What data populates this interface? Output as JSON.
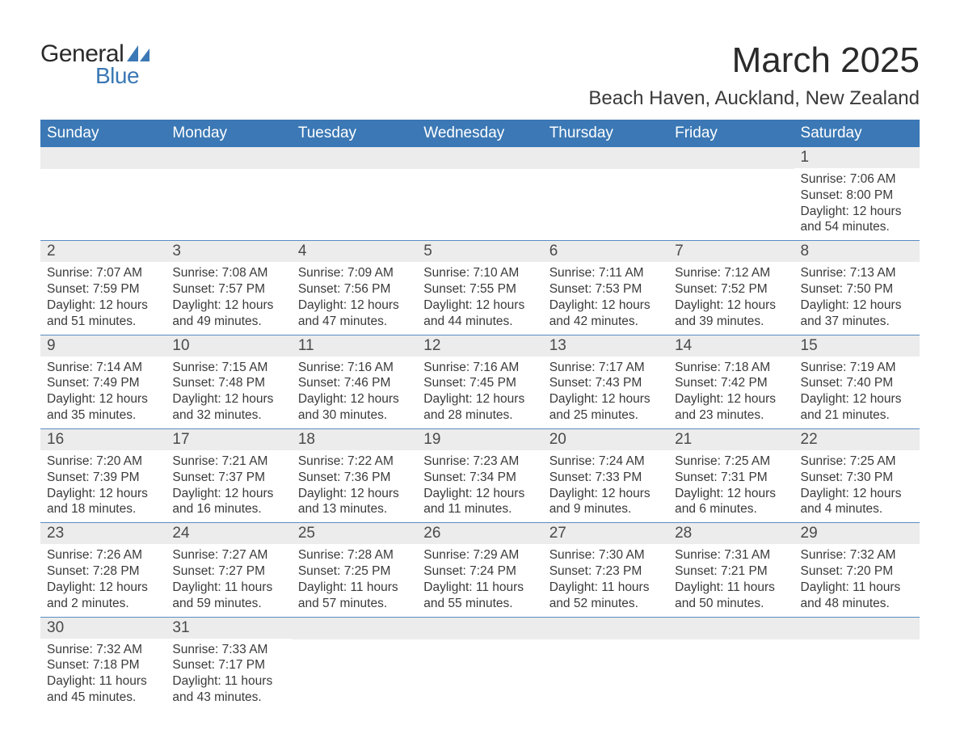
{
  "logo": {
    "text1": "General",
    "text2": "Blue",
    "accent_color": "#3b78b5"
  },
  "title": {
    "month": "March 2025",
    "location": "Beach Haven, Auckland, New Zealand"
  },
  "colors": {
    "header_bg": "#3b78b5",
    "header_text": "#ffffff",
    "daynum_bg": "#ececec",
    "row_divider": "#5a8cc4",
    "body_text": "#3a3a3a"
  },
  "weekdays": [
    "Sunday",
    "Monday",
    "Tuesday",
    "Wednesday",
    "Thursday",
    "Friday",
    "Saturday"
  ],
  "grid": {
    "rows": 6,
    "cols": 7,
    "first_day_index": 6,
    "days_in_month": 31
  },
  "days": {
    "1": {
      "sunrise": "7:06 AM",
      "sunset": "8:00 PM",
      "daylight": "12 hours and 54 minutes."
    },
    "2": {
      "sunrise": "7:07 AM",
      "sunset": "7:59 PM",
      "daylight": "12 hours and 51 minutes."
    },
    "3": {
      "sunrise": "7:08 AM",
      "sunset": "7:57 PM",
      "daylight": "12 hours and 49 minutes."
    },
    "4": {
      "sunrise": "7:09 AM",
      "sunset": "7:56 PM",
      "daylight": "12 hours and 47 minutes."
    },
    "5": {
      "sunrise": "7:10 AM",
      "sunset": "7:55 PM",
      "daylight": "12 hours and 44 minutes."
    },
    "6": {
      "sunrise": "7:11 AM",
      "sunset": "7:53 PM",
      "daylight": "12 hours and 42 minutes."
    },
    "7": {
      "sunrise": "7:12 AM",
      "sunset": "7:52 PM",
      "daylight": "12 hours and 39 minutes."
    },
    "8": {
      "sunrise": "7:13 AM",
      "sunset": "7:50 PM",
      "daylight": "12 hours and 37 minutes."
    },
    "9": {
      "sunrise": "7:14 AM",
      "sunset": "7:49 PM",
      "daylight": "12 hours and 35 minutes."
    },
    "10": {
      "sunrise": "7:15 AM",
      "sunset": "7:48 PM",
      "daylight": "12 hours and 32 minutes."
    },
    "11": {
      "sunrise": "7:16 AM",
      "sunset": "7:46 PM",
      "daylight": "12 hours and 30 minutes."
    },
    "12": {
      "sunrise": "7:16 AM",
      "sunset": "7:45 PM",
      "daylight": "12 hours and 28 minutes."
    },
    "13": {
      "sunrise": "7:17 AM",
      "sunset": "7:43 PM",
      "daylight": "12 hours and 25 minutes."
    },
    "14": {
      "sunrise": "7:18 AM",
      "sunset": "7:42 PM",
      "daylight": "12 hours and 23 minutes."
    },
    "15": {
      "sunrise": "7:19 AM",
      "sunset": "7:40 PM",
      "daylight": "12 hours and 21 minutes."
    },
    "16": {
      "sunrise": "7:20 AM",
      "sunset": "7:39 PM",
      "daylight": "12 hours and 18 minutes."
    },
    "17": {
      "sunrise": "7:21 AM",
      "sunset": "7:37 PM",
      "daylight": "12 hours and 16 minutes."
    },
    "18": {
      "sunrise": "7:22 AM",
      "sunset": "7:36 PM",
      "daylight": "12 hours and 13 minutes."
    },
    "19": {
      "sunrise": "7:23 AM",
      "sunset": "7:34 PM",
      "daylight": "12 hours and 11 minutes."
    },
    "20": {
      "sunrise": "7:24 AM",
      "sunset": "7:33 PM",
      "daylight": "12 hours and 9 minutes."
    },
    "21": {
      "sunrise": "7:25 AM",
      "sunset": "7:31 PM",
      "daylight": "12 hours and 6 minutes."
    },
    "22": {
      "sunrise": "7:25 AM",
      "sunset": "7:30 PM",
      "daylight": "12 hours and 4 minutes."
    },
    "23": {
      "sunrise": "7:26 AM",
      "sunset": "7:28 PM",
      "daylight": "12 hours and 2 minutes."
    },
    "24": {
      "sunrise": "7:27 AM",
      "sunset": "7:27 PM",
      "daylight": "11 hours and 59 minutes."
    },
    "25": {
      "sunrise": "7:28 AM",
      "sunset": "7:25 PM",
      "daylight": "11 hours and 57 minutes."
    },
    "26": {
      "sunrise": "7:29 AM",
      "sunset": "7:24 PM",
      "daylight": "11 hours and 55 minutes."
    },
    "27": {
      "sunrise": "7:30 AM",
      "sunset": "7:23 PM",
      "daylight": "11 hours and 52 minutes."
    },
    "28": {
      "sunrise": "7:31 AM",
      "sunset": "7:21 PM",
      "daylight": "11 hours and 50 minutes."
    },
    "29": {
      "sunrise": "7:32 AM",
      "sunset": "7:20 PM",
      "daylight": "11 hours and 48 minutes."
    },
    "30": {
      "sunrise": "7:32 AM",
      "sunset": "7:18 PM",
      "daylight": "11 hours and 45 minutes."
    },
    "31": {
      "sunrise": "7:33 AM",
      "sunset": "7:17 PM",
      "daylight": "11 hours and 43 minutes."
    }
  },
  "labels": {
    "sunrise_prefix": "Sunrise: ",
    "sunset_prefix": "Sunset: ",
    "daylight_prefix": "Daylight: "
  }
}
